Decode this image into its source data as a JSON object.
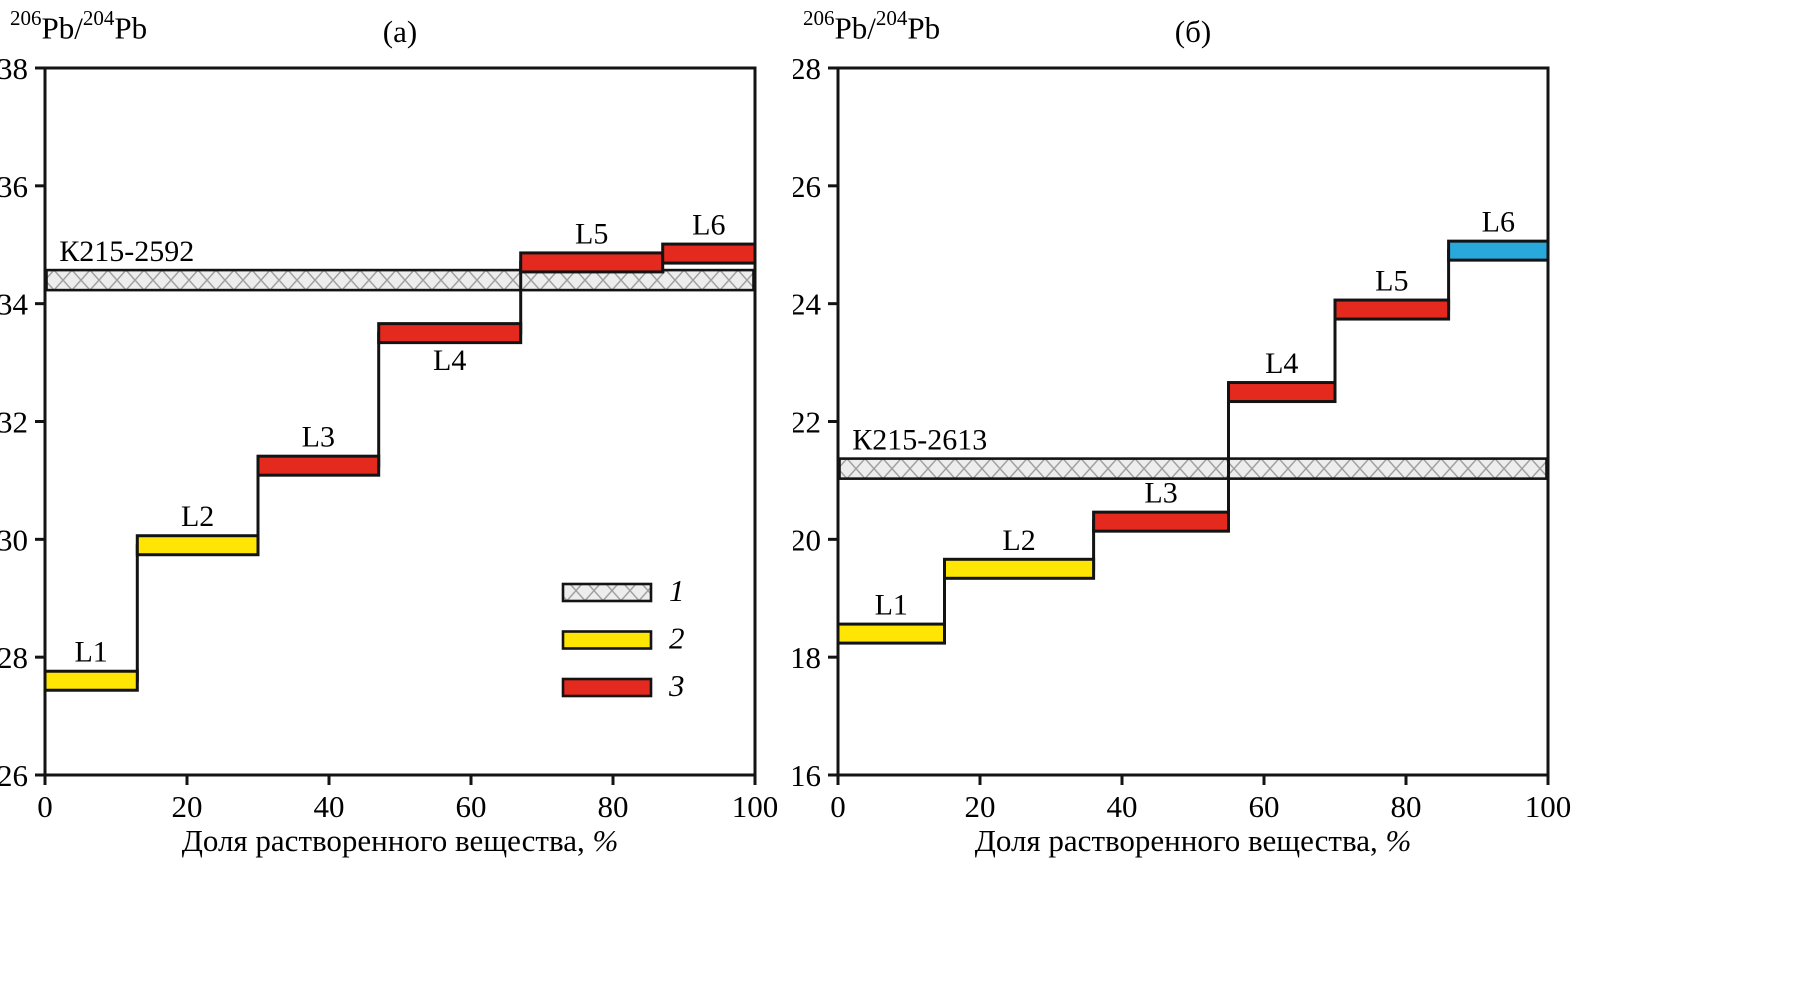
{
  "style": {
    "colors": {
      "yellow": "#FFE504",
      "red": "#E4291F",
      "blue": "#29A8DC",
      "hatch_bg": "#EDEDED",
      "hatch_line": "#9E9E9E",
      "stroke": "#131313"
    }
  },
  "legend": {
    "items": [
      {
        "label": "1",
        "swatch": "hatched"
      },
      {
        "label": "2",
        "swatch": "yellow"
      },
      {
        "label": "3",
        "swatch": "red"
      }
    ],
    "position": "inside-right-lower-panel-a"
  },
  "chart_data": [
    {
      "type": "bar",
      "subtype": "stepwise-leaching-profile",
      "panel_label": "(а)",
      "y_axis_label": "206Pb/204Pb",
      "y_axis_label_parts": {
        "iso1": "206",
        "el1": "Pb",
        "sep": "/",
        "iso2": "204",
        "el2": "Pb"
      },
      "x_axis_label": "Доля растворенного вещества, %",
      "x_axis_label_main": "Доля растворенного вещества,",
      "x_axis_label_unit": "%",
      "xlim": [
        0,
        100
      ],
      "ylim": [
        26,
        38
      ],
      "xticks": [
        0,
        20,
        40,
        60,
        80,
        100
      ],
      "yticks": [
        26,
        28,
        30,
        32,
        34,
        36,
        38
      ],
      "grid": false,
      "reference_band": {
        "label": "К215-2592",
        "y_center": 34.4,
        "y_half_width": 0.17,
        "x_start": 0,
        "x_end": 100,
        "label_x": 2,
        "swatch": "hatched"
      },
      "steps": [
        {
          "label": "L1",
          "x_start": 0,
          "x_end": 13,
          "y": 27.6,
          "color": "yellow",
          "label_position": "above"
        },
        {
          "label": "L2",
          "x_start": 13,
          "x_end": 30,
          "y": 29.9,
          "color": "yellow",
          "label_position": "above"
        },
        {
          "label": "L3",
          "x_start": 30,
          "x_end": 47,
          "y": 31.25,
          "color": "red",
          "label_position": "above"
        },
        {
          "label": "L4",
          "x_start": 47,
          "x_end": 67,
          "y": 33.5,
          "color": "red",
          "label_position": "below"
        },
        {
          "label": "L5",
          "x_start": 67,
          "x_end": 87,
          "y": 34.7,
          "color": "red",
          "label_position": "above"
        },
        {
          "label": "L6",
          "x_start": 87,
          "x_end": 100,
          "y": 34.85,
          "color": "red",
          "label_position": "above"
        }
      ],
      "show_legend": true
    },
    {
      "type": "bar",
      "subtype": "stepwise-leaching-profile",
      "panel_label": "(б)",
      "y_axis_label": "206Pb/204Pb",
      "y_axis_label_parts": {
        "iso1": "206",
        "el1": "Pb",
        "sep": "/",
        "iso2": "204",
        "el2": "Pb"
      },
      "x_axis_label": "Доля растворенного вещества, %",
      "x_axis_label_main": "Доля растворенного вещества,",
      "x_axis_label_unit": "%",
      "xlim": [
        0,
        100
      ],
      "ylim": [
        16,
        28
      ],
      "xticks": [
        0,
        20,
        40,
        60,
        80,
        100
      ],
      "yticks": [
        16,
        18,
        20,
        22,
        24,
        26,
        28
      ],
      "grid": false,
      "reference_band": {
        "label": "К215-2613",
        "y_center": 21.2,
        "y_half_width": 0.17,
        "x_start": 0,
        "x_end": 100,
        "label_x": 2,
        "swatch": "hatched"
      },
      "steps": [
        {
          "label": "L1",
          "x_start": 0,
          "x_end": 15,
          "y": 18.4,
          "color": "yellow",
          "label_position": "above"
        },
        {
          "label": "L2",
          "x_start": 15,
          "x_end": 36,
          "y": 19.5,
          "color": "yellow",
          "label_position": "above"
        },
        {
          "label": "L3",
          "x_start": 36,
          "x_end": 55,
          "y": 20.3,
          "color": "red",
          "label_position": "above"
        },
        {
          "label": "L4",
          "x_start": 55,
          "x_end": 70,
          "y": 22.5,
          "color": "red",
          "label_position": "above"
        },
        {
          "label": "L5",
          "x_start": 70,
          "x_end": 86,
          "y": 23.9,
          "color": "red",
          "label_position": "above"
        },
        {
          "label": "L6",
          "x_start": 86,
          "x_end": 100,
          "y": 24.9,
          "color": "blue",
          "label_position": "above"
        }
      ],
      "show_legend": false
    }
  ]
}
